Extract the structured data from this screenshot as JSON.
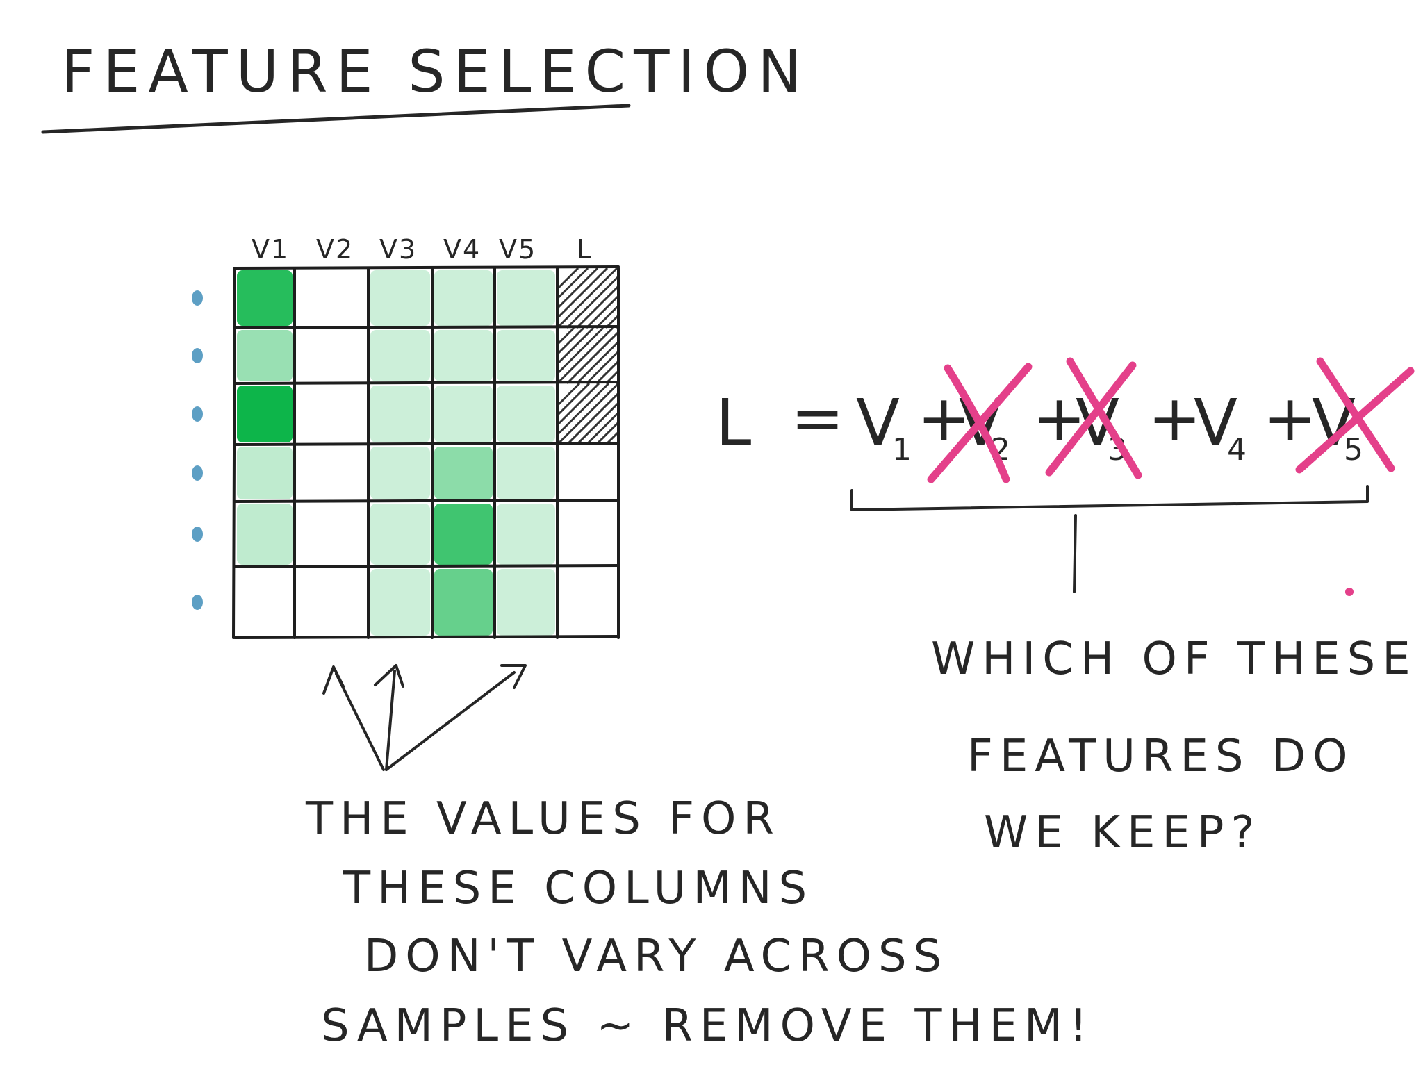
{
  "title": "FEATURE SELECTION",
  "matrix": {
    "column_headers": [
      "V1",
      "V2",
      "V3",
      "V4",
      "V5",
      "L"
    ],
    "label_column": "L",
    "labeled_rows": 3,
    "row_count": 6,
    "intensity": [
      [
        0.85,
        0,
        0.2,
        0.2,
        0.2
      ],
      [
        0.4,
        0,
        0.2,
        0.2,
        0.2
      ],
      [
        0.95,
        0,
        0.2,
        0.2,
        0.2
      ],
      [
        0.25,
        0,
        0.2,
        0.45,
        0.2
      ],
      [
        0.25,
        0,
        0.2,
        0.75,
        0.2
      ],
      [
        0,
        0,
        0.2,
        0.6,
        0.2
      ]
    ],
    "cell_color": "#00b140"
  },
  "equation": {
    "lhs": "L",
    "equals": "=",
    "plus": "+",
    "terms": [
      {
        "letter": "V",
        "index": "1",
        "crossed": false
      },
      {
        "letter": "V",
        "index": "2",
        "crossed": true
      },
      {
        "letter": "V",
        "index": "3",
        "crossed": true
      },
      {
        "letter": "V",
        "index": "4",
        "crossed": false
      },
      {
        "letter": "V",
        "index": "5",
        "crossed": true
      }
    ],
    "cross_color": "#e4408a"
  },
  "note_left": {
    "lines": [
      "THE VALUES FOR",
      "THESE COLUMNS",
      "DON'T VARY ACROSS",
      "SAMPLES ~ REMOVE THEM!"
    ]
  },
  "note_right": {
    "lines": [
      "WHICH OF THESE",
      "FEATURES DO",
      "WE KEEP?"
    ]
  },
  "colors": {
    "ink": "#262626",
    "green": "#00b140",
    "pink": "#e4408a",
    "row_marker": "#5d9fc4"
  }
}
